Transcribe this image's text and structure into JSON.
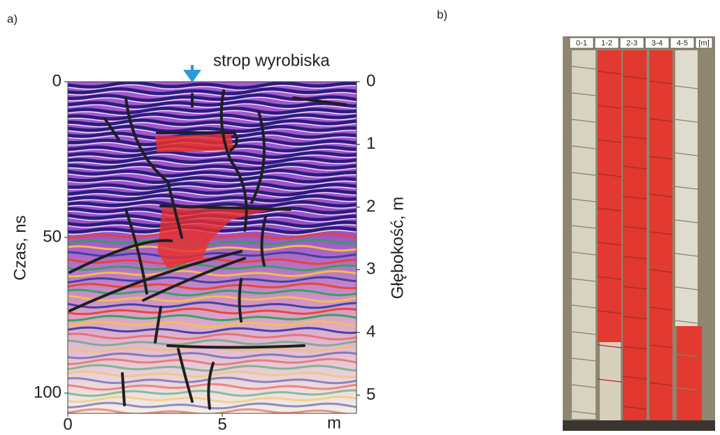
{
  "panel_a": {
    "label": "a)",
    "annotation": "strop wyrobiska",
    "left_axis": {
      "title": "Czas, ns",
      "ticks": [
        0,
        50,
        100
      ]
    },
    "right_axis": {
      "title": "Głębokość, m",
      "ticks": [
        0,
        1,
        2,
        3,
        4,
        5
      ]
    },
    "bottom_axis": {
      "ticks": [
        0,
        5
      ],
      "unit": "m"
    }
  },
  "panel_b": {
    "label": "b)",
    "columns": [
      "0-1",
      "1-2",
      "2-3",
      "3-4",
      "4-5",
      "[m]"
    ]
  }
}
